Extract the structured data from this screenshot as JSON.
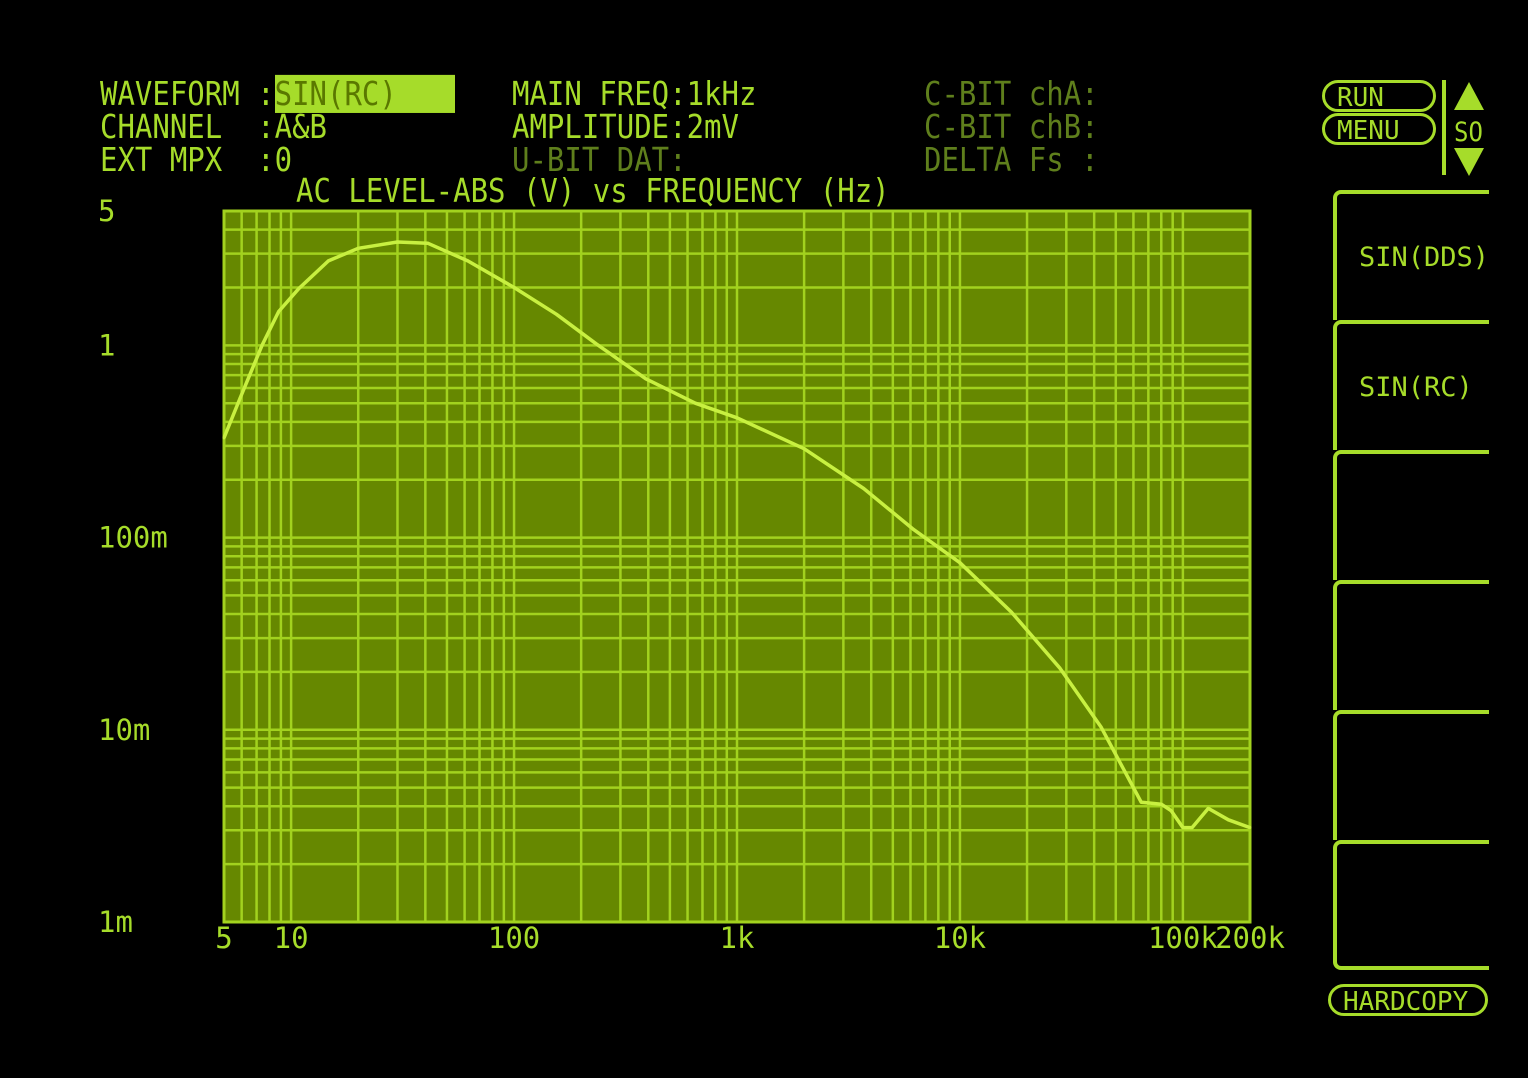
{
  "header": {
    "waveform_label": "WAVEFORM :",
    "waveform_value": "SIN(RC)",
    "channel_label": "CHANNEL  :",
    "channel_value": "A&B",
    "ext_mpx_label": "EXT MPX  :",
    "ext_mpx_value": "0",
    "main_freq": "MAIN FREQ:1kHz",
    "amplitude": "AMPLITUDE:2mV",
    "u_bit": "U-BIT DAT:",
    "c_bit_a": "C-BIT chA:",
    "c_bit_b": "C-BIT chB:",
    "delta_fs": "DELTA Fs :"
  },
  "controls": {
    "run": "RUN",
    "menu": "MENU",
    "so": "SO",
    "hardcopy": "HARDCOPY"
  },
  "softkeys": [
    "SIN(DDS)",
    "SIN(RC)",
    "",
    "",
    "",
    ""
  ],
  "colors": {
    "trace": "#c8f040",
    "grid": "#a2d21e",
    "plot_bg": "#668800",
    "text": "#a6dc2a",
    "dim_text": "#5f7f1c"
  },
  "chart_data": {
    "type": "line",
    "title": "AC LEVEL-ABS (V) vs FREQUENCY (Hz)",
    "x_scale": "log",
    "y_scale": "log",
    "xlim": [
      5,
      200000
    ],
    "ylim": [
      0.001,
      5
    ],
    "grid": true,
    "x_ticks": [
      {
        "v": 5,
        "label": "5"
      },
      {
        "v": 10,
        "label": "10"
      },
      {
        "v": 100,
        "label": "100"
      },
      {
        "v": 1000,
        "label": "1k"
      },
      {
        "v": 10000,
        "label": "10k"
      },
      {
        "v": 100000,
        "label": "100k"
      },
      {
        "v": 200000,
        "label": "200k"
      }
    ],
    "y_ticks": [
      {
        "v": 5,
        "label": "5"
      },
      {
        "v": 1,
        "label": "1"
      },
      {
        "v": 0.1,
        "label": "100m"
      },
      {
        "v": 0.01,
        "label": "10m"
      },
      {
        "v": 0.001,
        "label": "1m"
      }
    ],
    "series": [
      {
        "x": [
          5,
          5.9,
          7.4,
          8.8,
          10.8,
          14.7,
          20,
          30,
          41,
          62,
          100,
          155,
          233,
          390,
          650,
          1000,
          2000,
          3700,
          6200,
          10000,
          17000,
          28000,
          43000,
          65000,
          80000,
          88500,
          100000,
          110000,
          130000,
          160000,
          200000
        ],
        "y": [
          0.33,
          0.53,
          1.0,
          1.5,
          1.97,
          2.75,
          3.2,
          3.45,
          3.4,
          2.75,
          2.0,
          1.45,
          1.02,
          0.67,
          0.5,
          0.42,
          0.29,
          0.18,
          0.11,
          0.074,
          0.041,
          0.021,
          0.0103,
          0.0042,
          0.0041,
          0.0038,
          0.0031,
          0.0031,
          0.0039,
          0.0034,
          0.0031
        ]
      }
    ]
  }
}
